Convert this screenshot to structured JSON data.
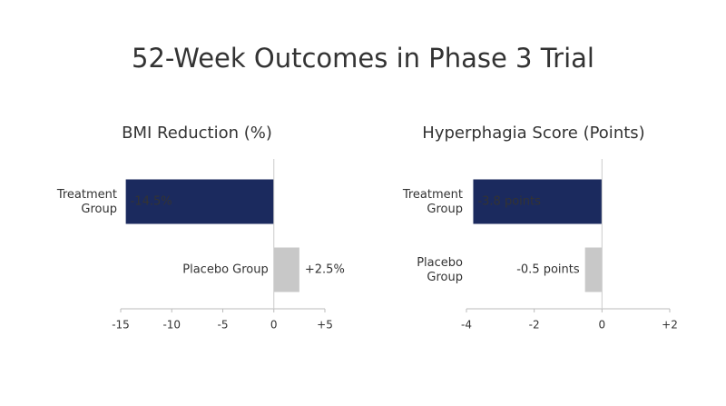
{
  "title": "52-Week Outcomes in Phase 3 Trial",
  "chart_data": [
    {
      "type": "bar",
      "orientation": "horizontal",
      "title": "BMI Reduction (%)",
      "categories": [
        "Treatment Group",
        "Placebo Group"
      ],
      "values": [
        -14.5,
        2.5
      ],
      "value_labels": [
        "-14.5%",
        "+2.5%"
      ],
      "colors": [
        "#1b2a5e",
        "#c8c8c8"
      ],
      "xlim": [
        -15,
        5
      ],
      "xticks": [
        -15,
        -10,
        -5,
        0,
        {
          "value": 5,
          "label": "+5"
        }
      ]
    },
    {
      "type": "bar",
      "orientation": "horizontal",
      "title": "Hyperphagia Score (Points)",
      "categories": [
        "Treatment Group",
        "Placebo Group"
      ],
      "values": [
        -3.8,
        -0.5
      ],
      "value_labels": [
        "-3.8 points",
        "-0.5 points"
      ],
      "colors": [
        "#1b2a5e",
        "#c8c8c8"
      ],
      "xlim": [
        -4,
        2
      ],
      "xticks": [
        -4,
        -2,
        0,
        {
          "value": 2,
          "label": "+2"
        }
      ]
    }
  ]
}
